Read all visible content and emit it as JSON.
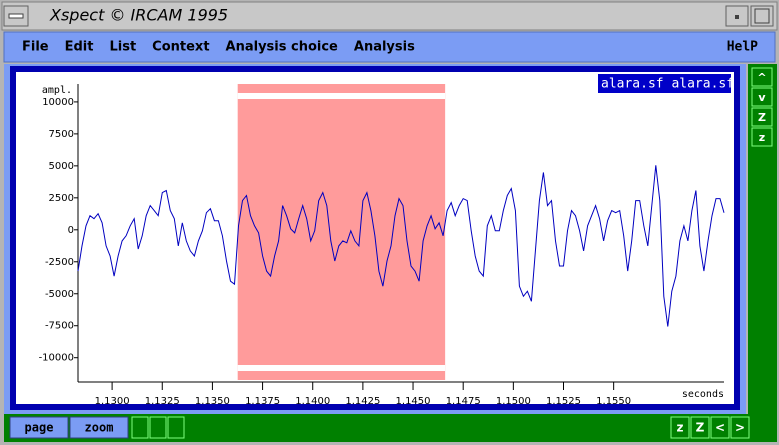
{
  "window": {
    "title": "Xspect © IRCAM 1995"
  },
  "menu": [
    "File",
    "Edit",
    "List",
    "Context",
    "Analysis choice",
    "Analysis"
  ],
  "help": "HelP",
  "side_buttons": [
    "^",
    "v",
    "Z",
    "z"
  ],
  "bottom_buttons": [
    "page",
    "zoom"
  ],
  "nav_buttons": [
    "z",
    "Z",
    "<",
    ">"
  ],
  "chart_data": {
    "type": "line",
    "sound_label": "alara.sf alara.sf",
    "ylabel": "ampl.",
    "xlabel": "seconds",
    "color": "#0000c0",
    "selection": [
      1.13626,
      1.1466
    ],
    "selection_color": "#ff9b9b",
    "xlim": [
      1.1283,
      1.1605
    ],
    "ylim": [
      -11900,
      11400
    ],
    "xticks": [
      {
        "value": 1.13,
        "label": "1.1300"
      },
      {
        "value": 1.1325,
        "label": "1.1325"
      },
      {
        "value": 1.135,
        "label": "1.1350"
      },
      {
        "value": 1.1375,
        "label": "1.1375"
      },
      {
        "value": 1.14,
        "label": "1.1400"
      },
      {
        "value": 1.1425,
        "label": "1.1425"
      },
      {
        "value": 1.145,
        "label": "1.1450"
      },
      {
        "value": 1.1475,
        "label": "1.1475"
      },
      {
        "value": 1.15,
        "label": "1.1500"
      },
      {
        "value": 1.1525,
        "label": "1.1525"
      },
      {
        "value": 1.155,
        "label": "1.1550"
      }
    ],
    "yticks": [
      10000,
      7500,
      5000,
      2500,
      0,
      -2500,
      -5000,
      -7500,
      -10000
    ],
    "x": [
      1.1283,
      1.1285,
      1.1287,
      1.1289,
      1.1291,
      1.1293,
      1.1295,
      1.1297,
      1.1299,
      1.1301,
      1.1303,
      1.1305,
      1.1307,
      1.1309,
      1.1311,
      1.1313,
      1.1315,
      1.1317,
      1.1319,
      1.1321,
      1.1323,
      1.1325,
      1.1327,
      1.1329,
      1.1331,
      1.1333,
      1.1335,
      1.1337,
      1.1339,
      1.1341,
      1.1343,
      1.1345,
      1.1347,
      1.1349,
      1.1351,
      1.1353,
      1.1355,
      1.1357,
      1.1359,
      1.1361,
      1.1363,
      1.1365,
      1.1367,
      1.1369,
      1.1371,
      1.1373,
      1.1375,
      1.1377,
      1.1379,
      1.1381,
      1.1383,
      1.1385,
      1.1387,
      1.1389,
      1.1391,
      1.1393,
      1.1395,
      1.1397,
      1.1399,
      1.1401,
      1.1403,
      1.1405,
      1.1407,
      1.1409,
      1.1411,
      1.1413,
      1.1415,
      1.1417,
      1.1419,
      1.1421,
      1.1423,
      1.1425,
      1.1427,
      1.1429,
      1.1431,
      1.1433,
      1.1435,
      1.1437,
      1.1439,
      1.1441,
      1.1443,
      1.1445,
      1.1447,
      1.1449,
      1.1451,
      1.1453,
      1.1455,
      1.1457,
      1.1459,
      1.1461,
      1.1463,
      1.1465,
      1.1467,
      1.1469,
      1.1471,
      1.1473,
      1.1475,
      1.1477,
      1.1479,
      1.1481,
      1.1483,
      1.1485,
      1.1487,
      1.1489,
      1.1491,
      1.1493,
      1.1495,
      1.1497,
      1.1499,
      1.1501,
      1.1503,
      1.1505,
      1.1507,
      1.1509,
      1.1511,
      1.1513,
      1.1515,
      1.1517,
      1.1519,
      1.1521,
      1.1523,
      1.1525,
      1.1527,
      1.1529,
      1.1531,
      1.1533,
      1.1535,
      1.1537,
      1.1539,
      1.1541,
      1.1543,
      1.1545,
      1.1547,
      1.1549,
      1.1551,
      1.1553,
      1.1555,
      1.1557,
      1.1559,
      1.1561,
      1.1563,
      1.1565,
      1.1567,
      1.1569,
      1.1571,
      1.1573,
      1.1575,
      1.1577,
      1.1579,
      1.1581,
      1.1583,
      1.1585,
      1.1587,
      1.1589,
      1.1591,
      1.1593,
      1.1595,
      1.1597,
      1.1599,
      1.1601,
      1.1603,
      1.1605
    ],
    "values": [
      -3230,
      -1260,
      315,
      1100,
      870,
      1260,
      550,
      -1260,
      -2050,
      -3620,
      -2050,
      -870,
      -470,
      315,
      870,
      -1500,
      -470,
      1100,
      1890,
      1500,
      1100,
      2910,
      3070,
      1500,
      870,
      -1260,
      550,
      -870,
      -1650,
      -2050,
      -870,
      -80,
      1340,
      1650,
      710,
      710,
      -470,
      -2440,
      -4020,
      -4250,
      315,
      2280,
      2680,
      1100,
      315,
      -240,
      -2050,
      -3230,
      -3620,
      -2050,
      -870,
      1890,
      1100,
      80,
      -240,
      870,
      1890,
      870,
      -870,
      -80,
      2280,
      2910,
      1890,
      -870,
      -2440,
      -1260,
      -870,
      -1020,
      -80,
      -870,
      -1260,
      2280,
      2910,
      1500,
      -470,
      -3230,
      -4410,
      -2440,
      -1260,
      1100,
      2440,
      1890,
      -870,
      -2830,
      -3230,
      -4020,
      -870,
      315,
      1100,
      80,
      550,
      -470,
      1500,
      2130,
      1100,
      1890,
      2440,
      2280,
      -80,
      -2050,
      -3230,
      -3620,
      315,
      1100,
      -80,
      -80,
      1500,
      2680,
      3230,
      1500,
      -4410,
      -5200,
      -4800,
      -5590,
      -1650,
      2280,
      4490,
      1890,
      2280,
      -870,
      -2830,
      -2830,
      -80,
      1500,
      1100,
      -80,
      -1650,
      315,
      1100,
      1890,
      870,
      -870,
      710,
      1500,
      1340,
      1500,
      -470,
      -3230,
      -870,
      2280,
      2280,
      315,
      -1260,
      1890,
      5040,
      2280,
      -5200,
      -7560,
      -4800,
      -3620,
      -870,
      315,
      -870,
      1500,
      3070,
      -1260,
      -3230,
      -870,
      1100,
      2440,
      2440,
      1340
    ]
  }
}
